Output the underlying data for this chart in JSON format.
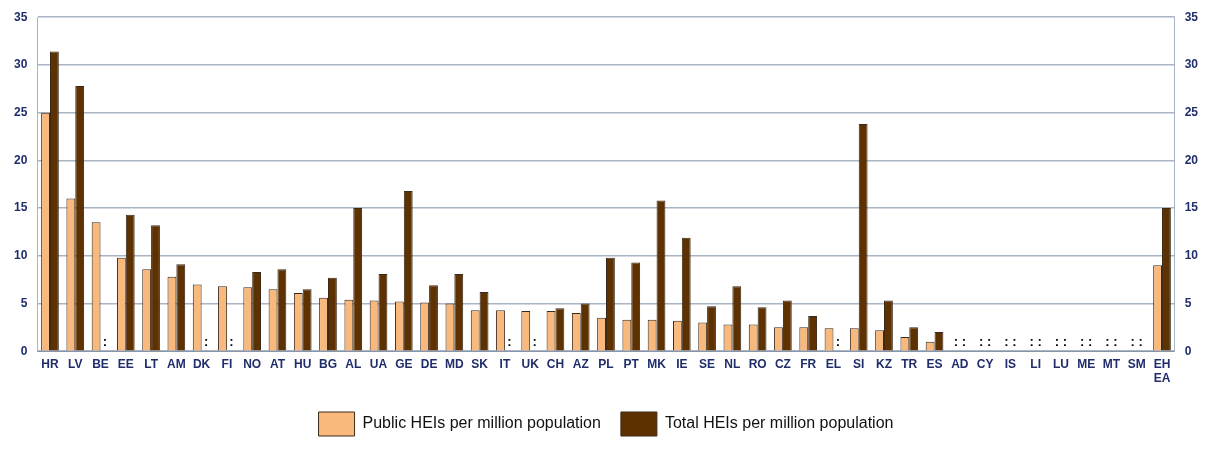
{
  "chart_data": {
    "type": "bar",
    "categories": [
      "HR",
      "LV",
      "BE",
      "EE",
      "LT",
      "AM",
      "DK",
      "FI",
      "NO",
      "AT",
      "HU",
      "BG",
      "AL",
      "UA",
      "GE",
      "DE",
      "MD",
      "SK",
      "IT",
      "UK",
      "CH",
      "AZ",
      "PL",
      "PT",
      "MK",
      "IE",
      "SE",
      "NL",
      "RO",
      "CZ",
      "FR",
      "EL",
      "SI",
      "KZ",
      "TR",
      "ES",
      "AD",
      "CY",
      "IS",
      "LI",
      "LU",
      "ME",
      "MT",
      "SM",
      "EHEA"
    ],
    "series": [
      {
        "name": "Public HEIs per million population",
        "color": "#f9b97c",
        "values": [
          25.0,
          16.0,
          13.5,
          9.8,
          8.6,
          7.8,
          7.0,
          6.8,
          6.7,
          6.5,
          6.1,
          5.6,
          5.4,
          5.3,
          5.2,
          5.1,
          5.0,
          4.3,
          4.3,
          4.2,
          4.2,
          4.0,
          3.5,
          3.3,
          3.3,
          3.2,
          3.0,
          2.8,
          2.8,
          2.5,
          2.5,
          2.4,
          2.4,
          2.2,
          1.5,
          1.0,
          null,
          null,
          null,
          null,
          null,
          null,
          null,
          null,
          9.0
        ]
      },
      {
        "name": "Total HEIs per million population",
        "color": "#5e3100",
        "values": [
          31.4,
          27.8,
          null,
          14.3,
          13.2,
          9.1,
          null,
          null,
          8.3,
          8.6,
          6.5,
          7.7,
          15.0,
          8.1,
          16.8,
          6.9,
          8.1,
          6.2,
          null,
          null,
          4.5,
          5.0,
          9.8,
          9.3,
          15.8,
          11.9,
          4.7,
          6.8,
          4.6,
          5.3,
          3.7,
          null,
          23.8,
          5.3,
          2.5,
          2.0,
          null,
          null,
          null,
          null,
          null,
          null,
          null,
          null,
          15.0
        ]
      }
    ],
    "ylim": [
      0,
      35
    ],
    "yticks": [
      0,
      5,
      10,
      15,
      20,
      25,
      30,
      35
    ],
    "y2lim": [
      0,
      35
    ],
    "y2ticks": [
      0,
      5,
      10,
      15,
      20,
      25,
      30,
      35
    ],
    "grid": "y",
    "legend": "bottom",
    "annotations": [
      {
        "text": ":",
        "x": "BE",
        "y": 0
      },
      {
        "text": ":",
        "x": "DK",
        "y": 0
      },
      {
        "text": ":",
        "x": "FI",
        "y": 0
      },
      {
        "text": ":",
        "x": "IT",
        "y": 0
      },
      {
        "text": ":",
        "x": "UK",
        "y": 0
      },
      {
        "text": ":",
        "x": "EL",
        "y": 0
      },
      ": :",
      ": :",
      ": :",
      ": :",
      ": :",
      ": :",
      ": :",
      ": :"
    ]
  }
}
